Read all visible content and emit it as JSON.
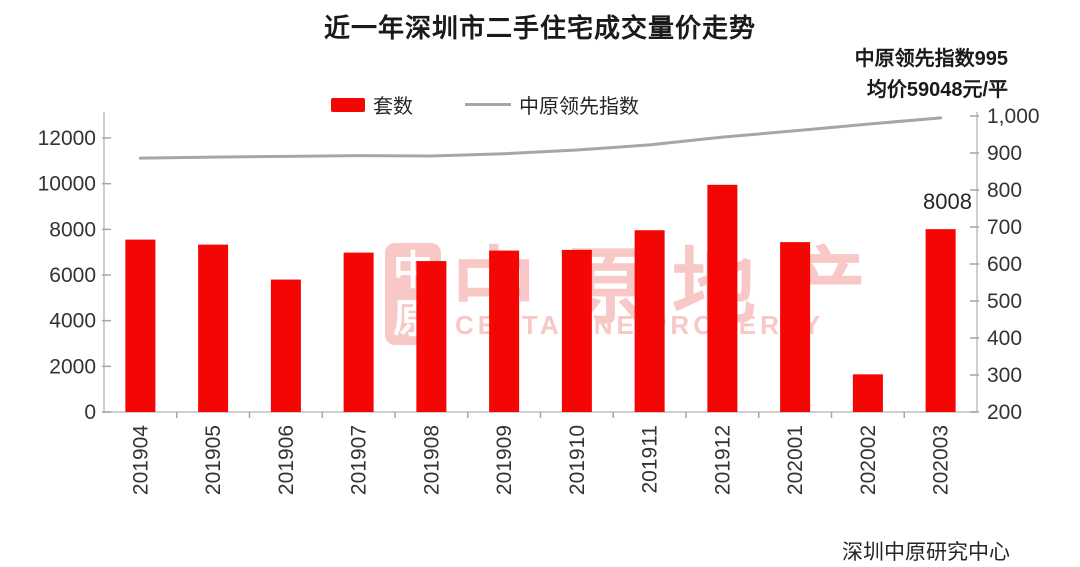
{
  "title": "近一年深圳市二手住宅成交量价走势",
  "annotation": {
    "line1": "中原领先指数995",
    "line2": "均价59048元/平"
  },
  "source": "深圳中原研究中心",
  "legend": {
    "bar_label": "套数",
    "line_label": "中原领先指数"
  },
  "watermark": {
    "seal_char_top": "中",
    "seal_char_bottom": "原",
    "main_text": "中原地产",
    "sub_text": "CENTALINE PROPERTY"
  },
  "colors": {
    "bar": "#f40604",
    "line": "#a6a6a6",
    "axis": "#bfbfbf",
    "tick": "#a6a6a6",
    "axis_text": "#333333",
    "watermark": "#f8c8c6"
  },
  "chart_data": {
    "type": "bar+line",
    "title": "近一年深圳市二手住宅成交量价走势",
    "categories": [
      "201904",
      "201905",
      "201906",
      "201907",
      "201908",
      "201909",
      "201910",
      "201911",
      "201912",
      "202001",
      "202002",
      "202003"
    ],
    "series": [
      {
        "name": "套数",
        "type": "bar",
        "axis": "left",
        "values": [
          7550,
          7330,
          5800,
          6980,
          6610,
          7070,
          7100,
          7960,
          9950,
          7440,
          1650,
          8008
        ]
      },
      {
        "name": "中原领先指数",
        "type": "line",
        "axis": "right",
        "values": [
          886,
          889,
          891,
          893,
          892,
          898,
          908,
          922,
          943,
          960,
          978,
          995
        ]
      }
    ],
    "left_axis": {
      "min": 0,
      "max": 12000,
      "tick_values": [
        0,
        2000,
        4000,
        6000,
        8000,
        10000,
        12000
      ],
      "tick_labels": [
        "0",
        "2000",
        "4000",
        "6000",
        "8000",
        "10000",
        "12000"
      ]
    },
    "right_axis": {
      "min": 200,
      "max": 1000,
      "tick_values": [
        200,
        300,
        400,
        500,
        600,
        700,
        800,
        900,
        1000
      ],
      "tick_labels": [
        "200",
        "300",
        "400",
        "500",
        "600",
        "700",
        "800",
        "900",
        "1,000"
      ]
    },
    "bar_label": {
      "category": "202003",
      "text": "8008"
    },
    "legend_position": "top",
    "grid": false
  }
}
